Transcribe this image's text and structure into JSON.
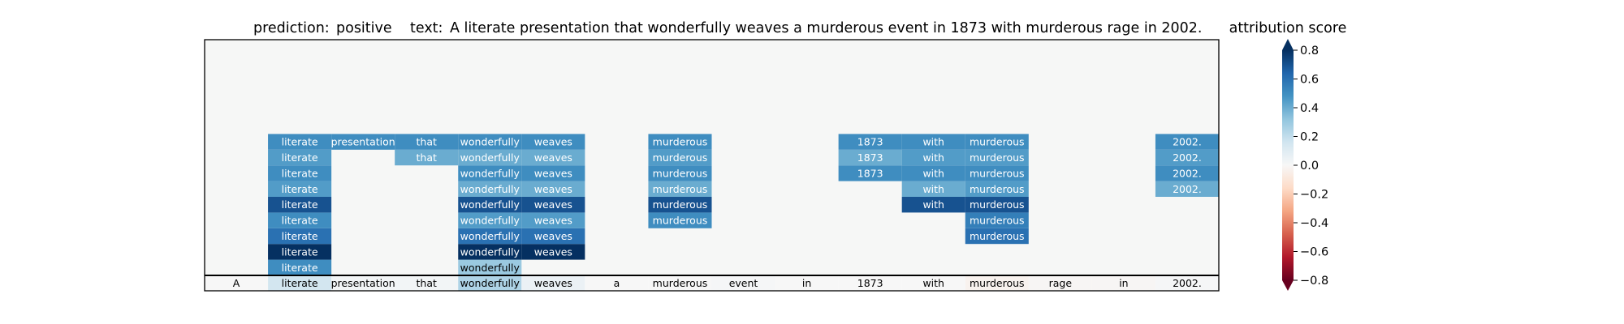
{
  "chart_data": {
    "type": "heatmap",
    "title": {
      "prediction_label": "prediction:",
      "prediction_value": "positive",
      "text_label": "text:",
      "text_value": "A literate presentation that wonderfully weaves a murderous event in 1873 with murderous rage in 2002."
    },
    "tokens": [
      "A",
      "literate",
      "presentation",
      "that",
      "wonderfully",
      "weaves",
      "a",
      "murderous",
      "event",
      "in",
      "1873",
      "with",
      "murderous",
      "rage",
      "in",
      "2002."
    ],
    "base_row_scores": [
      0.0,
      0.15,
      0.02,
      0.02,
      0.25,
      0.05,
      0.0,
      0.0,
      0.01,
      0.0,
      0.0,
      0.0,
      -0.03,
      -0.01,
      -0.01,
      0.01
    ],
    "stack_rows": [
      {
        "cells": [
          {
            "col": 1,
            "score": 0.5
          },
          {
            "col": 4,
            "score": 0.3
          }
        ]
      },
      {
        "cells": [
          {
            "col": 1,
            "score": 0.8
          },
          {
            "col": 4,
            "score": 0.8
          },
          {
            "col": 5,
            "score": 0.8
          }
        ]
      },
      {
        "cells": [
          {
            "col": 1,
            "score": 0.6
          },
          {
            "col": 4,
            "score": 0.6
          },
          {
            "col": 5,
            "score": 0.6
          },
          {
            "col": 12,
            "score": 0.6
          }
        ]
      },
      {
        "cells": [
          {
            "col": 1,
            "score": 0.5
          },
          {
            "col": 4,
            "score": 0.45
          },
          {
            "col": 5,
            "score": 0.45
          },
          {
            "col": 7,
            "score": 0.5
          },
          {
            "col": 12,
            "score": 0.55
          }
        ]
      },
      {
        "cells": [
          {
            "col": 1,
            "score": 0.7
          },
          {
            "col": 4,
            "score": 0.7
          },
          {
            "col": 5,
            "score": 0.7
          },
          {
            "col": 7,
            "score": 0.7
          },
          {
            "col": 11,
            "score": 0.7
          },
          {
            "col": 12,
            "score": 0.7
          }
        ]
      },
      {
        "cells": [
          {
            "col": 1,
            "score": 0.45
          },
          {
            "col": 4,
            "score": 0.4
          },
          {
            "col": 5,
            "score": 0.4
          },
          {
            "col": 7,
            "score": 0.4
          },
          {
            "col": 11,
            "score": 0.4
          },
          {
            "col": 12,
            "score": 0.45
          },
          {
            "col": 15,
            "score": 0.4
          }
        ]
      },
      {
        "cells": [
          {
            "col": 1,
            "score": 0.5
          },
          {
            "col": 4,
            "score": 0.5
          },
          {
            "col": 5,
            "score": 0.5
          },
          {
            "col": 7,
            "score": 0.5
          },
          {
            "col": 10,
            "score": 0.5
          },
          {
            "col": 11,
            "score": 0.5
          },
          {
            "col": 12,
            "score": 0.5
          },
          {
            "col": 15,
            "score": 0.5
          }
        ]
      },
      {
        "cells": [
          {
            "col": 1,
            "score": 0.45
          },
          {
            "col": 3,
            "score": 0.4
          },
          {
            "col": 4,
            "score": 0.4
          },
          {
            "col": 5,
            "score": 0.4
          },
          {
            "col": 7,
            "score": 0.45
          },
          {
            "col": 10,
            "score": 0.4
          },
          {
            "col": 11,
            "score": 0.45
          },
          {
            "col": 12,
            "score": 0.45
          },
          {
            "col": 15,
            "score": 0.45
          }
        ]
      },
      {
        "cells": [
          {
            "col": 1,
            "score": 0.5
          },
          {
            "col": 2,
            "score": 0.5
          },
          {
            "col": 3,
            "score": 0.5
          },
          {
            "col": 4,
            "score": 0.5
          },
          {
            "col": 5,
            "score": 0.5
          },
          {
            "col": 7,
            "score": 0.5
          },
          {
            "col": 10,
            "score": 0.5
          },
          {
            "col": 11,
            "score": 0.5
          },
          {
            "col": 12,
            "score": 0.5
          },
          {
            "col": 15,
            "score": 0.5
          }
        ]
      }
    ],
    "colorbar": {
      "label": "attribution score",
      "range": [
        -0.8,
        0.8
      ],
      "ticks": [
        0.8,
        0.6,
        0.4,
        0.2,
        0.0,
        -0.2,
        -0.4,
        -0.6,
        -0.8
      ],
      "tick_labels": [
        "0.8",
        "0.6",
        "0.4",
        "0.2",
        "0.0",
        "−0.2",
        "−0.4",
        "−0.6",
        "−0.8"
      ],
      "colormap": "RdBu"
    },
    "colors": {
      "background": "#f6f7f6",
      "dark_blue": "#053061",
      "dark_red": "#67001f",
      "neutral": "#f7f7f7"
    }
  }
}
